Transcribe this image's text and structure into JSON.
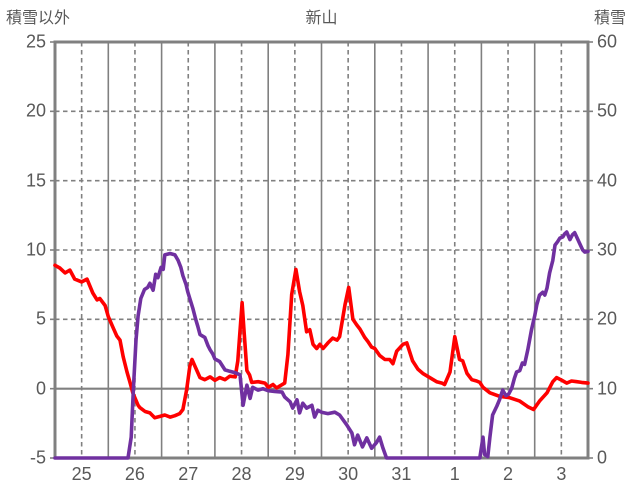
{
  "header": {
    "left_axis_title": "積雪以外",
    "title": "新山",
    "right_axis_title": "積雪"
  },
  "chart_data": {
    "type": "line",
    "title": "新山",
    "left_axis": {
      "label": "積雪以外",
      "min": -5,
      "max": 25,
      "tick_step": 5,
      "ticks": [
        "25",
        "20",
        "15",
        "10",
        "5",
        "0",
        "-5"
      ]
    },
    "right_axis": {
      "label": "積雪",
      "min": 0,
      "max": 60,
      "tick_step": 10,
      "ticks": [
        "60",
        "50",
        "40",
        "30",
        "20",
        "10",
        "0"
      ]
    },
    "x_axis": {
      "labels": [
        "25",
        "26",
        "27",
        "28",
        "29",
        "30",
        "31",
        "1",
        "2",
        "3"
      ],
      "days": 10,
      "gridlines": "solid at midnight, dashed at noon",
      "note": "labels centered at noon of each day"
    },
    "grid": {
      "color": "#808080",
      "zero_line": "solid",
      "horizontal": "dashed",
      "border": "thick solid"
    },
    "colors": {
      "red_series": "#FF0000",
      "purple_series": "#7030A0",
      "grid": "#808080",
      "text": "#595959"
    },
    "legend": "none",
    "series": [
      {
        "name": "積雪以外",
        "axis": "left",
        "color": "#FF0000",
        "points": [
          [
            0.0,
            8.9
          ],
          [
            0.09,
            8.7
          ],
          [
            0.19,
            8.35
          ],
          [
            0.28,
            8.55
          ],
          [
            0.37,
            7.9
          ],
          [
            0.5,
            7.7
          ],
          [
            0.6,
            7.9
          ],
          [
            0.71,
            6.9
          ],
          [
            0.79,
            6.4
          ],
          [
            0.84,
            6.5
          ],
          [
            0.94,
            6.0
          ],
          [
            1.0,
            5.2
          ],
          [
            1.09,
            4.4
          ],
          [
            1.16,
            3.8
          ],
          [
            1.22,
            3.5
          ],
          [
            1.28,
            2.3
          ],
          [
            1.35,
            1.2
          ],
          [
            1.41,
            0.4
          ],
          [
            1.46,
            -0.3
          ],
          [
            1.56,
            -1.2
          ],
          [
            1.59,
            -1.35
          ],
          [
            1.69,
            -1.65
          ],
          [
            1.78,
            -1.75
          ],
          [
            1.87,
            -2.1
          ],
          [
            1.97,
            -2.0
          ],
          [
            2.06,
            -1.9
          ],
          [
            2.16,
            -2.05
          ],
          [
            2.25,
            -1.95
          ],
          [
            2.34,
            -1.8
          ],
          [
            2.4,
            -1.5
          ],
          [
            2.47,
            -0.05
          ],
          [
            2.53,
            1.6
          ],
          [
            2.57,
            2.1
          ],
          [
            2.64,
            1.5
          ],
          [
            2.72,
            0.8
          ],
          [
            2.81,
            0.65
          ],
          [
            2.91,
            0.85
          ],
          [
            3.0,
            0.6
          ],
          [
            3.09,
            0.8
          ],
          [
            3.19,
            0.65
          ],
          [
            3.28,
            0.9
          ],
          [
            3.38,
            0.85
          ],
          [
            3.43,
            2.0
          ],
          [
            3.51,
            6.2
          ],
          [
            3.55,
            4.0
          ],
          [
            3.6,
            1.3
          ],
          [
            3.65,
            1.0
          ],
          [
            3.69,
            0.45
          ],
          [
            3.81,
            0.5
          ],
          [
            3.94,
            0.4
          ],
          [
            4.0,
            0.1
          ],
          [
            4.09,
            0.3
          ],
          [
            4.16,
            0.05
          ],
          [
            4.22,
            0.2
          ],
          [
            4.31,
            0.4
          ],
          [
            4.37,
            2.45
          ],
          [
            4.44,
            6.8
          ],
          [
            4.52,
            8.6
          ],
          [
            4.59,
            7.0
          ],
          [
            4.65,
            6.0
          ],
          [
            4.72,
            4.1
          ],
          [
            4.78,
            4.25
          ],
          [
            4.84,
            3.2
          ],
          [
            4.91,
            2.9
          ],
          [
            4.97,
            3.2
          ],
          [
            5.03,
            2.9
          ],
          [
            5.12,
            3.3
          ],
          [
            5.21,
            3.65
          ],
          [
            5.29,
            3.5
          ],
          [
            5.34,
            3.75
          ],
          [
            5.44,
            6.05
          ],
          [
            5.51,
            7.3
          ],
          [
            5.59,
            5.0
          ],
          [
            5.66,
            4.6
          ],
          [
            5.72,
            4.3
          ],
          [
            5.81,
            3.7
          ],
          [
            5.87,
            3.4
          ],
          [
            5.94,
            3.0
          ],
          [
            6.0,
            2.9
          ],
          [
            6.09,
            2.4
          ],
          [
            6.19,
            2.1
          ],
          [
            6.28,
            2.1
          ],
          [
            6.34,
            1.8
          ],
          [
            6.41,
            2.7
          ],
          [
            6.53,
            3.2
          ],
          [
            6.6,
            3.3
          ],
          [
            6.71,
            2.0
          ],
          [
            6.81,
            1.4
          ],
          [
            6.9,
            1.1
          ],
          [
            7.03,
            0.8
          ],
          [
            7.16,
            0.5
          ],
          [
            7.26,
            0.4
          ],
          [
            7.31,
            0.3
          ],
          [
            7.41,
            1.2
          ],
          [
            7.5,
            3.75
          ],
          [
            7.59,
            2.1
          ],
          [
            7.65,
            2.0
          ],
          [
            7.73,
            1.1
          ],
          [
            7.82,
            0.65
          ],
          [
            7.91,
            0.55
          ],
          [
            7.97,
            0.45
          ],
          [
            8.03,
            0.1
          ],
          [
            8.16,
            -0.3
          ],
          [
            8.34,
            -0.55
          ],
          [
            8.53,
            -0.65
          ],
          [
            8.72,
            -0.9
          ],
          [
            8.87,
            -1.3
          ],
          [
            8.98,
            -1.5
          ],
          [
            9.09,
            -0.9
          ],
          [
            9.23,
            -0.3
          ],
          [
            9.34,
            0.5
          ],
          [
            9.41,
            0.8
          ],
          [
            9.51,
            0.6
          ],
          [
            9.6,
            0.4
          ],
          [
            9.69,
            0.55
          ],
          [
            9.79,
            0.5
          ],
          [
            9.88,
            0.45
          ],
          [
            10.0,
            0.4
          ]
        ]
      },
      {
        "name": "積雪",
        "axis": "right",
        "color": "#7030A0",
        "points": [
          [
            0.0,
            0
          ],
          [
            1.37,
            0
          ],
          [
            1.43,
            3
          ],
          [
            1.47,
            10
          ],
          [
            1.52,
            17
          ],
          [
            1.56,
            20.5
          ],
          [
            1.61,
            23
          ],
          [
            1.68,
            24.3
          ],
          [
            1.74,
            24.6
          ],
          [
            1.78,
            25.2
          ],
          [
            1.84,
            24.2
          ],
          [
            1.89,
            26.5
          ],
          [
            1.93,
            26.0
          ],
          [
            1.99,
            27.5
          ],
          [
            2.03,
            27.2
          ],
          [
            2.06,
            29.3
          ],
          [
            2.16,
            29.5
          ],
          [
            2.25,
            29.3
          ],
          [
            2.31,
            28.5
          ],
          [
            2.36,
            27.5
          ],
          [
            2.4,
            26.3
          ],
          [
            2.46,
            25.0
          ],
          [
            2.49,
            24.0
          ],
          [
            2.53,
            23.0
          ],
          [
            2.59,
            21.5
          ],
          [
            2.64,
            20.0
          ],
          [
            2.68,
            19.0
          ],
          [
            2.72,
            17.8
          ],
          [
            2.81,
            17.4
          ],
          [
            2.87,
            16.2
          ],
          [
            2.91,
            15.6
          ],
          [
            2.96,
            15.0
          ],
          [
            3.0,
            14.3
          ],
          [
            3.09,
            13.9
          ],
          [
            3.19,
            12.7
          ],
          [
            3.28,
            12.5
          ],
          [
            3.38,
            12.3
          ],
          [
            3.47,
            12.0
          ],
          [
            3.53,
            7.6
          ],
          [
            3.6,
            10.5
          ],
          [
            3.66,
            8.6
          ],
          [
            3.71,
            10.2
          ],
          [
            3.81,
            9.8
          ],
          [
            3.9,
            10.0
          ],
          [
            4.0,
            9.7
          ],
          [
            4.12,
            9.6
          ],
          [
            4.26,
            9.5
          ],
          [
            4.31,
            8.8
          ],
          [
            4.41,
            8.1
          ],
          [
            4.46,
            7.2
          ],
          [
            4.54,
            8.4
          ],
          [
            4.59,
            6.5
          ],
          [
            4.65,
            7.9
          ],
          [
            4.72,
            7.2
          ],
          [
            4.82,
            7.6
          ],
          [
            4.87,
            5.9
          ],
          [
            4.93,
            6.9
          ],
          [
            5.0,
            6.6
          ],
          [
            5.12,
            6.4
          ],
          [
            5.25,
            6.6
          ],
          [
            5.34,
            6.2
          ],
          [
            5.47,
            4.8
          ],
          [
            5.57,
            3.6
          ],
          [
            5.62,
            1.9
          ],
          [
            5.68,
            3.3
          ],
          [
            5.77,
            1.6
          ],
          [
            5.85,
            2.9
          ],
          [
            5.94,
            1.4
          ],
          [
            6.03,
            2.2
          ],
          [
            6.09,
            3.0
          ],
          [
            6.15,
            1.5
          ],
          [
            6.22,
            0
          ],
          [
            7.97,
            0
          ],
          [
            8.03,
            3.0
          ],
          [
            8.06,
            0.5
          ],
          [
            8.12,
            0.2
          ],
          [
            8.16,
            3.0
          ],
          [
            8.21,
            6.2
          ],
          [
            8.29,
            7.5
          ],
          [
            8.34,
            8.4
          ],
          [
            8.4,
            9.8
          ],
          [
            8.46,
            9.0
          ],
          [
            8.51,
            9.2
          ],
          [
            8.57,
            10.1
          ],
          [
            8.62,
            11.5
          ],
          [
            8.66,
            12.4
          ],
          [
            8.72,
            12.6
          ],
          [
            8.77,
            13.7
          ],
          [
            8.81,
            13.5
          ],
          [
            8.87,
            15.6
          ],
          [
            8.94,
            18.5
          ],
          [
            9.0,
            20.5
          ],
          [
            9.04,
            22.1
          ],
          [
            9.09,
            23.5
          ],
          [
            9.15,
            23.9
          ],
          [
            9.19,
            23.5
          ],
          [
            9.23,
            24.5
          ],
          [
            9.28,
            26.7
          ],
          [
            9.34,
            28.5
          ],
          [
            9.38,
            30.7
          ],
          [
            9.43,
            31.2
          ],
          [
            9.47,
            31.7
          ],
          [
            9.53,
            31.9
          ],
          [
            9.56,
            32.3
          ],
          [
            9.6,
            32.6
          ],
          [
            9.66,
            31.5
          ],
          [
            9.71,
            32.2
          ],
          [
            9.75,
            32.5
          ],
          [
            9.81,
            31.5
          ],
          [
            9.84,
            31.0
          ],
          [
            9.9,
            30.0
          ],
          [
            9.94,
            29.7
          ],
          [
            10.0,
            29.8
          ]
        ]
      }
    ]
  }
}
